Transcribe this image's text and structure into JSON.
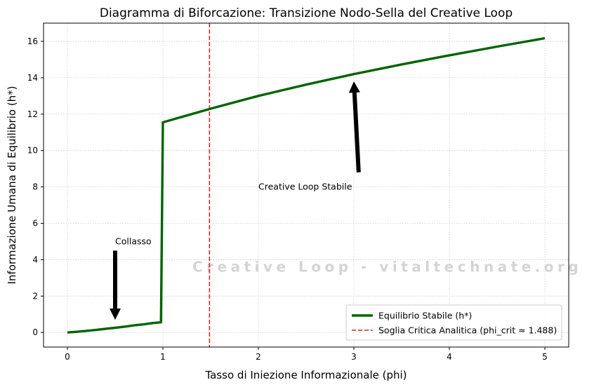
{
  "chart_data": {
    "type": "line",
    "title": "Diagramma di Biforcazione: Transizione Nodo-Sella del Creative Loop",
    "xlabel": "Tasso di Iniezione Informazionale (phi)",
    "ylabel": "Informazione Umana di Equilibrio (h*)",
    "xlim": [
      -0.25,
      5.25
    ],
    "ylim": [
      -0.8,
      17
    ],
    "xticks": [
      0,
      1,
      2,
      3,
      4,
      5
    ],
    "yticks": [
      0,
      2,
      4,
      6,
      8,
      10,
      12,
      14,
      16
    ],
    "grid": true,
    "legend_position": "lower-right",
    "series": [
      {
        "name": "Equilibrio Stabile (h*)",
        "color": "#006400",
        "style": "solid",
        "x": [
          0,
          0.1,
          0.2,
          0.3,
          0.4,
          0.5,
          0.6,
          0.7,
          0.8,
          0.9,
          0.98,
          1.0,
          1.5,
          2.0,
          2.5,
          3.0,
          3.5,
          4.0,
          4.5,
          5.0
        ],
        "y": [
          0.0,
          0.04,
          0.09,
          0.14,
          0.2,
          0.26,
          0.32,
          0.39,
          0.45,
          0.52,
          0.56,
          11.55,
          12.3,
          13.0,
          13.62,
          14.2,
          14.73,
          15.23,
          15.71,
          16.17
        ]
      }
    ],
    "vlines": [
      {
        "name": "Soglia Critica Analitica (phi_crit ≈ 1.488)",
        "x": 1.488,
        "color": "#d62728",
        "style": "dashed"
      }
    ],
    "annotations": [
      {
        "text": "Collasso",
        "text_xy": [
          0.5,
          5.0
        ],
        "arrow_from": [
          0.5,
          4.5
        ],
        "arrow_to": [
          0.5,
          0.7
        ]
      },
      {
        "text": "Creative Loop Stabile",
        "text_xy": [
          2.0,
          8.0
        ],
        "arrow_from": [
          3.05,
          8.8
        ],
        "arrow_to": [
          3.0,
          13.8
        ]
      }
    ],
    "watermark": "Creative Loop - vitaltechnate.org"
  }
}
